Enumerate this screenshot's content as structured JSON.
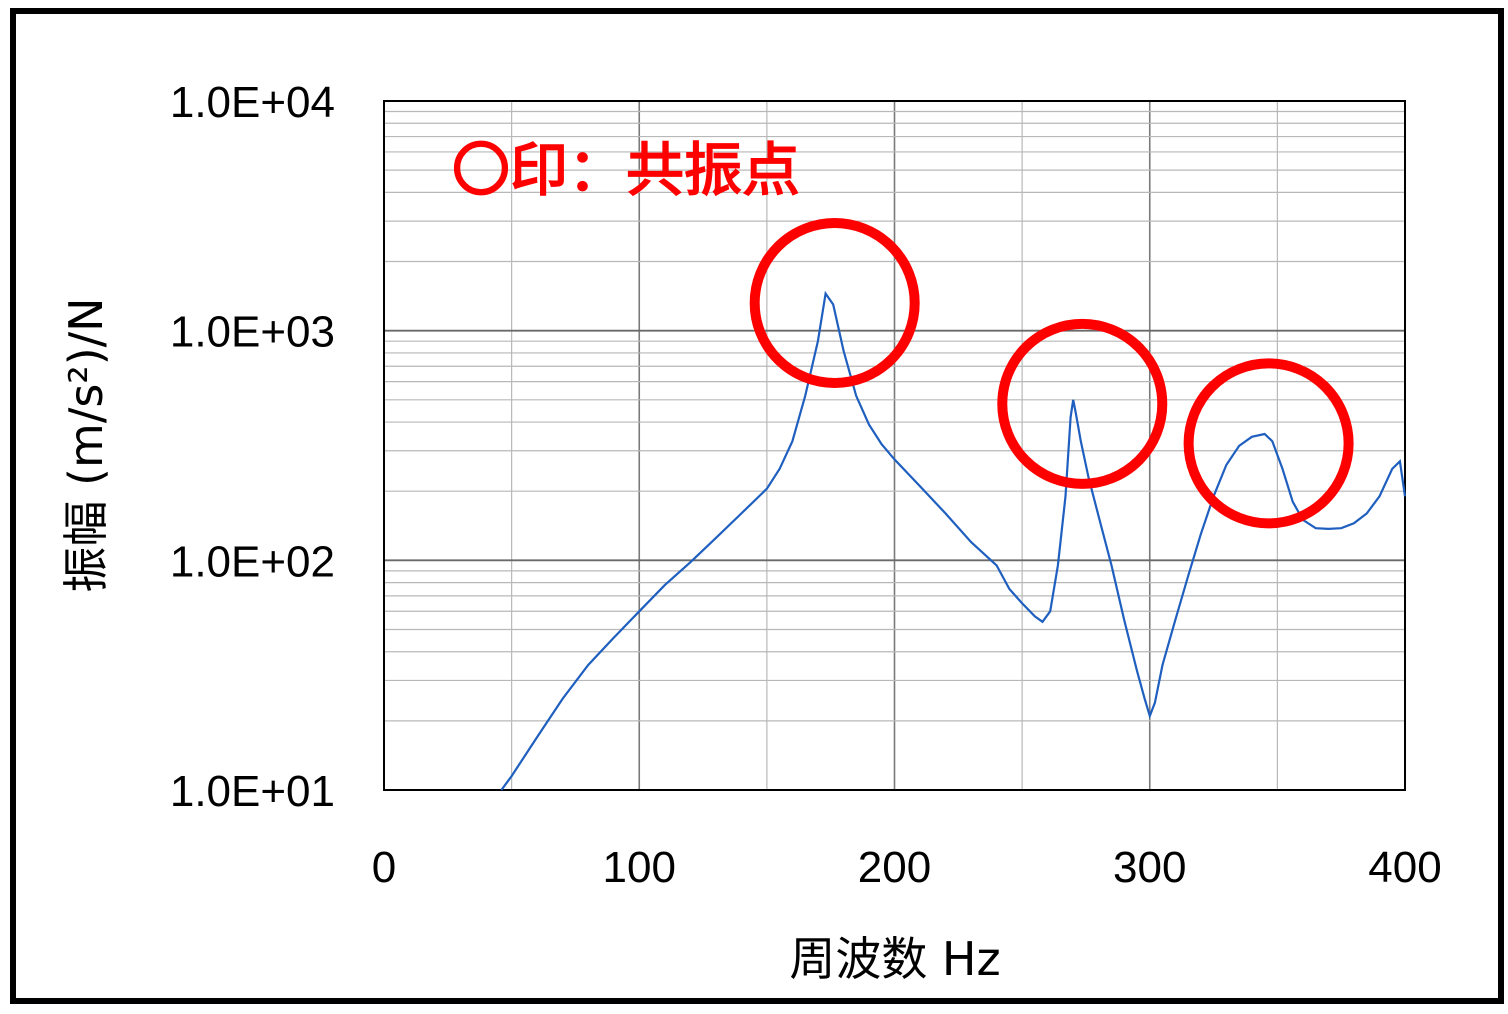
{
  "chart_data": {
    "type": "line",
    "title": "",
    "xlabel": "周波数 Hz",
    "ylabel": "振幅 (m/s²)/N",
    "xlim": [
      0,
      400
    ],
    "ylim": [
      10,
      10000
    ],
    "yscale": "log",
    "grid": true,
    "x_ticks": [
      "0",
      "100",
      "200",
      "300",
      "400"
    ],
    "y_ticks": [
      "1.0E+01",
      "1.0E+02",
      "1.0E+03",
      "1.0E+04"
    ],
    "series_color": "#1f5fbf",
    "annotation_color": "#ff0000",
    "annotation_label": "〇印：共振点",
    "series": [
      {
        "x": [
          46,
          50,
          60,
          70,
          80,
          90,
          100,
          110,
          120,
          130,
          140,
          150,
          155,
          160,
          165,
          170,
          173,
          176,
          180,
          185,
          190,
          195,
          200,
          210,
          220,
          230,
          240,
          245,
          250,
          255,
          258,
          261,
          264,
          267,
          269,
          270,
          271,
          273,
          276,
          280,
          285,
          290,
          295,
          298,
          300,
          302,
          305,
          310,
          315,
          320,
          325,
          330,
          335,
          340,
          345,
          348,
          352,
          356,
          360,
          365,
          370,
          375,
          380,
          385,
          390,
          395,
          398,
          400
        ],
        "y": [
          10,
          11.5,
          17,
          25,
          35,
          46,
          60,
          78,
          98,
          125,
          160,
          205,
          250,
          330,
          520,
          900,
          1450,
          1300,
          820,
          520,
          390,
          320,
          275,
          210,
          160,
          120,
          95,
          75,
          65,
          57,
          54,
          60,
          95,
          190,
          420,
          500,
          440,
          330,
          230,
          155,
          95,
          55,
          33,
          25,
          21,
          24,
          35,
          55,
          85,
          130,
          190,
          260,
          315,
          345,
          355,
          330,
          250,
          180,
          150,
          138,
          137,
          138,
          145,
          160,
          190,
          250,
          270,
          190
        ]
      }
    ],
    "resonance_points": [
      {
        "x": 175,
        "y": 1430
      },
      {
        "x": 272,
        "y": 520
      },
      {
        "x": 345,
        "y": 350
      }
    ]
  }
}
